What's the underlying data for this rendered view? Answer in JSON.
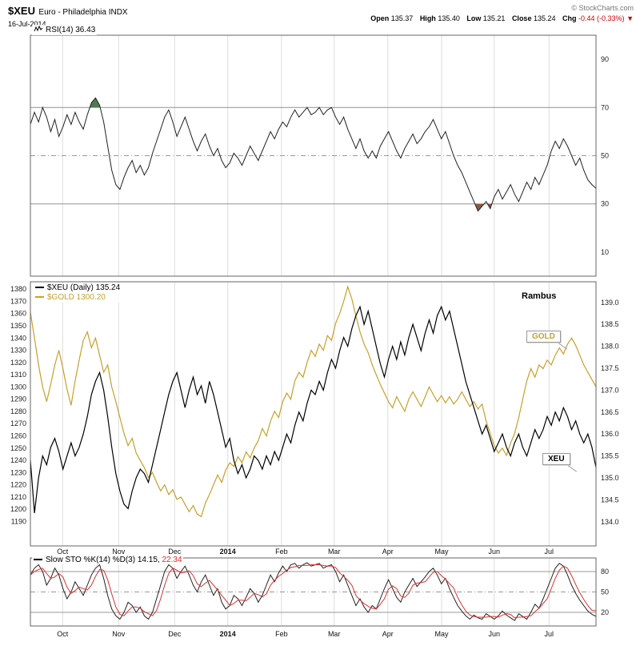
{
  "header": {
    "symbol": "$XEU",
    "name": "Euro - Philadelphia INDX",
    "date": "16-Jul-2014",
    "copyright": "© StockCharts.com",
    "quote": {
      "items": [
        {
          "label": "Open",
          "value": "135.37"
        },
        {
          "label": "High",
          "value": "135.40"
        },
        {
          "label": "Low",
          "value": "135.21"
        },
        {
          "label": "Close",
          "value": "135.24"
        }
      ],
      "chg_label": "Chg",
      "chg_value": "-0.44 (-0.33%)",
      "chg_arrow": "▼"
    }
  },
  "annotations": {
    "rambus": "Rambus",
    "gold_callout": "GOLD",
    "xeu_callout": "XEU"
  },
  "colors": {
    "gold": "#C8A02C",
    "black": "#000000",
    "red": "#E03030",
    "chg_red": "#CC0000",
    "grid": "#DCDCDC",
    "hline": "#999999",
    "panel_border": "#666666",
    "green_fill": "#4E7A52",
    "brown_fill": "#8A5A44",
    "copyright": "#777777"
  },
  "x_axis": {
    "labels": [
      "Oct",
      "Nov",
      "Dec",
      "2014",
      "Feb",
      "Mar",
      "Apr",
      "May",
      "Jun",
      "Jul"
    ],
    "positions": [
      0.057,
      0.156,
      0.255,
      0.349,
      0.444,
      0.537,
      0.632,
      0.727,
      0.82,
      0.917
    ],
    "bold_label": "2014"
  },
  "chart_data": [
    {
      "type": "line",
      "panel": "rsi",
      "label": "RSI(14) 36.43",
      "current": 36.43,
      "ylim": [
        0,
        100
      ],
      "yticks": [
        90,
        70,
        50,
        30,
        10
      ],
      "overbought": 70,
      "oversold": 30,
      "hlines": [
        {
          "value": 70,
          "style": "solid"
        },
        {
          "value": 50,
          "style": "dashdot"
        },
        {
          "value": 30,
          "style": "solid"
        }
      ],
      "series": [
        {
          "name": "RSI(14)",
          "color": "#222222",
          "values": [
            63,
            68,
            64,
            70,
            66,
            60,
            65,
            58,
            62,
            67,
            63,
            68,
            64,
            61,
            67,
            72,
            74,
            71,
            64,
            54,
            44,
            38,
            36,
            41,
            45,
            48,
            43,
            46,
            42,
            45,
            51,
            56,
            61,
            66,
            69,
            64,
            58,
            62,
            66,
            61,
            56,
            52,
            56,
            59,
            54,
            50,
            53,
            48,
            45,
            47,
            51,
            49,
            46,
            50,
            54,
            51,
            48,
            52,
            56,
            60,
            57,
            61,
            64,
            62,
            66,
            69,
            66,
            68,
            70,
            67,
            68,
            70,
            67,
            69,
            70,
            66,
            63,
            66,
            61,
            57,
            53,
            57,
            52,
            49,
            52,
            49,
            54,
            57,
            60,
            56,
            52,
            49,
            53,
            56,
            59,
            55,
            57,
            60,
            62,
            65,
            61,
            57,
            60,
            55,
            50,
            46,
            43,
            39,
            35,
            31,
            27,
            29,
            31,
            28,
            33,
            36,
            32,
            35,
            38,
            34,
            31,
            35,
            39,
            36,
            41,
            38,
            42,
            46,
            52,
            56,
            53,
            57,
            54,
            50,
            46,
            49,
            44,
            40,
            38,
            36.43
          ]
        }
      ]
    },
    {
      "type": "line",
      "panel": "price",
      "legend": [
        {
          "label": "$XEU (Daily) 135.24",
          "color": "#000000"
        },
        {
          "label": "$GOLD 1300.20",
          "color": "#C8A02C"
        }
      ],
      "left_axis": {
        "range": [
          1170,
          1386
        ],
        "ticks": [
          1380,
          1370,
          1360,
          1350,
          1340,
          1330,
          1320,
          1310,
          1300,
          1290,
          1280,
          1270,
          1260,
          1250,
          1240,
          1230,
          1220,
          1210,
          1200,
          1190
        ]
      },
      "right_axis": {
        "range": [
          133.45,
          139.47
        ],
        "ticks": [
          "139.0",
          "138.5",
          "138.0",
          "137.5",
          "137.0",
          "136.5",
          "136.0",
          "135.5",
          "135.0",
          "134.5",
          "134.0"
        ]
      },
      "series": [
        {
          "name": "$GOLD",
          "axis": "left",
          "color": "#C8A02C",
          "current": 1300.2,
          "values": [
            1361,
            1340,
            1318,
            1300,
            1288,
            1302,
            1318,
            1330,
            1315,
            1298,
            1285,
            1305,
            1322,
            1338,
            1345,
            1332,
            1340,
            1326,
            1312,
            1318,
            1300,
            1288,
            1275,
            1262,
            1252,
            1258,
            1246,
            1240,
            1234,
            1226,
            1230,
            1222,
            1215,
            1220,
            1212,
            1216,
            1208,
            1210,
            1204,
            1198,
            1203,
            1196,
            1194,
            1205,
            1212,
            1220,
            1228,
            1222,
            1232,
            1238,
            1235,
            1243,
            1238,
            1247,
            1242,
            1250,
            1256,
            1266,
            1260,
            1272,
            1280,
            1275,
            1288,
            1295,
            1290,
            1305,
            1312,
            1308,
            1320,
            1330,
            1325,
            1335,
            1330,
            1342,
            1338,
            1352,
            1360,
            1370,
            1382,
            1372,
            1358,
            1345,
            1335,
            1328,
            1318,
            1310,
            1302,
            1295,
            1288,
            1283,
            1292,
            1286,
            1280,
            1290,
            1296,
            1290,
            1284,
            1292,
            1300,
            1294,
            1288,
            1293,
            1287,
            1292,
            1286,
            1290,
            1296,
            1290,
            1284,
            1288,
            1282,
            1286,
            1272,
            1262,
            1252,
            1246,
            1250,
            1244,
            1254,
            1262,
            1275,
            1290,
            1305,
            1315,
            1308,
            1318,
            1315,
            1322,
            1318,
            1326,
            1332,
            1327,
            1335,
            1340,
            1334,
            1326,
            1318,
            1312,
            1306,
            1300.2
          ]
        },
        {
          "name": "$XEU",
          "axis": "right",
          "color": "#000000",
          "current": 135.24,
          "values": [
            135.4,
            134.2,
            135.0,
            135.5,
            135.3,
            135.7,
            135.9,
            135.6,
            135.2,
            135.5,
            135.8,
            135.5,
            135.7,
            136.0,
            136.4,
            136.9,
            137.2,
            137.4,
            137.0,
            136.4,
            135.7,
            135.1,
            134.7,
            134.4,
            134.3,
            134.7,
            135.0,
            135.2,
            135.1,
            134.9,
            135.3,
            135.7,
            136.1,
            136.5,
            136.9,
            137.2,
            137.4,
            137.0,
            136.6,
            137.0,
            137.3,
            136.9,
            137.1,
            136.7,
            137.2,
            136.9,
            136.5,
            136.1,
            135.7,
            135.9,
            135.4,
            135.1,
            135.3,
            135.0,
            135.2,
            135.5,
            135.4,
            135.2,
            135.5,
            135.3,
            135.6,
            135.4,
            135.7,
            136.0,
            135.8,
            136.2,
            136.5,
            136.3,
            136.7,
            137.0,
            136.9,
            137.2,
            137.0,
            137.4,
            137.7,
            137.5,
            137.9,
            138.2,
            138.0,
            138.4,
            138.7,
            138.9,
            138.5,
            138.8,
            138.4,
            138.0,
            137.6,
            137.3,
            137.7,
            138.0,
            137.7,
            138.1,
            137.8,
            138.2,
            138.5,
            138.2,
            137.9,
            138.3,
            138.6,
            138.3,
            138.7,
            138.9,
            138.6,
            138.8,
            138.4,
            138.0,
            137.6,
            137.2,
            136.9,
            136.6,
            136.3,
            136.0,
            136.2,
            135.9,
            135.6,
            135.8,
            136.0,
            135.7,
            135.5,
            135.8,
            136.0,
            135.7,
            135.5,
            135.8,
            136.1,
            135.9,
            136.1,
            136.4,
            136.2,
            136.5,
            136.3,
            136.6,
            136.4,
            136.1,
            136.3,
            136.0,
            135.8,
            136.0,
            135.7,
            135.24
          ]
        }
      ]
    },
    {
      "type": "line",
      "panel": "sto",
      "label": "Slow STO %K(14) %D(3)",
      "k_value": "14.15,",
      "d_value": "22.34",
      "ylim": [
        0,
        100
      ],
      "yticks": [
        80,
        50,
        20
      ],
      "hlines": [
        {
          "value": 80,
          "style": "solid"
        },
        {
          "value": 50,
          "style": "dashdot"
        },
        {
          "value": 20,
          "style": "solid"
        }
      ],
      "series": [
        {
          "name": "%K(14)",
          "color": "#222222",
          "current": 14.15,
          "values": [
            75,
            85,
            90,
            80,
            60,
            70,
            85,
            75,
            55,
            40,
            50,
            65,
            55,
            45,
            60,
            75,
            85,
            90,
            70,
            45,
            25,
            15,
            10,
            20,
            35,
            30,
            20,
            28,
            15,
            10,
            20,
            40,
            60,
            80,
            90,
            85,
            70,
            80,
            88,
            75,
            60,
            50,
            65,
            75,
            60,
            45,
            55,
            35,
            25,
            30,
            45,
            40,
            30,
            42,
            55,
            48,
            35,
            45,
            60,
            75,
            65,
            78,
            88,
            80,
            90,
            92,
            85,
            90,
            93,
            88,
            90,
            92,
            85,
            88,
            90,
            80,
            65,
            75,
            60,
            45,
            30,
            40,
            28,
            20,
            30,
            25,
            40,
            55,
            68,
            55,
            42,
            35,
            50,
            60,
            70,
            58,
            65,
            72,
            80,
            85,
            75,
            62,
            70,
            55,
            42,
            30,
            22,
            15,
            10,
            16,
            12,
            10,
            18,
            14,
            10,
            15,
            22,
            16,
            12,
            8,
            18,
            14,
            10,
            20,
            32,
            26,
            40,
            55,
            70,
            85,
            92,
            88,
            75,
            60,
            48,
            38,
            30,
            22,
            17,
            14.15
          ]
        },
        {
          "name": "%D(3)",
          "color": "#E03030",
          "current": 22.34,
          "values": [
            75,
            80,
            83,
            85,
            77,
            70,
            72,
            77,
            72,
            57,
            48,
            52,
            57,
            55,
            53,
            60,
            73,
            83,
            82,
            68,
            47,
            28,
            17,
            15,
            22,
            28,
            28,
            26,
            21,
            18,
            15,
            23,
            40,
            60,
            77,
            85,
            82,
            78,
            79,
            81,
            74,
            62,
            58,
            63,
            67,
            60,
            53,
            45,
            38,
            30,
            33,
            38,
            38,
            37,
            42,
            48,
            46,
            43,
            47,
            60,
            67,
            73,
            77,
            82,
            86,
            87,
            89,
            89,
            89,
            90,
            90,
            90,
            89,
            88,
            88,
            86,
            78,
            73,
            67,
            60,
            45,
            38,
            33,
            29,
            26,
            25,
            32,
            40,
            54,
            59,
            55,
            44,
            42,
            48,
            60,
            63,
            64,
            65,
            72,
            79,
            80,
            74,
            69,
            62,
            56,
            42,
            31,
            22,
            16,
            14,
            13,
            13,
            13,
            14,
            14,
            13,
            16,
            18,
            17,
            12,
            13,
            13,
            14,
            15,
            21,
            26,
            33,
            40,
            55,
            70,
            82,
            88,
            85,
            74,
            61,
            49,
            39,
            30,
            23,
            22.34
          ]
        }
      ]
    }
  ]
}
